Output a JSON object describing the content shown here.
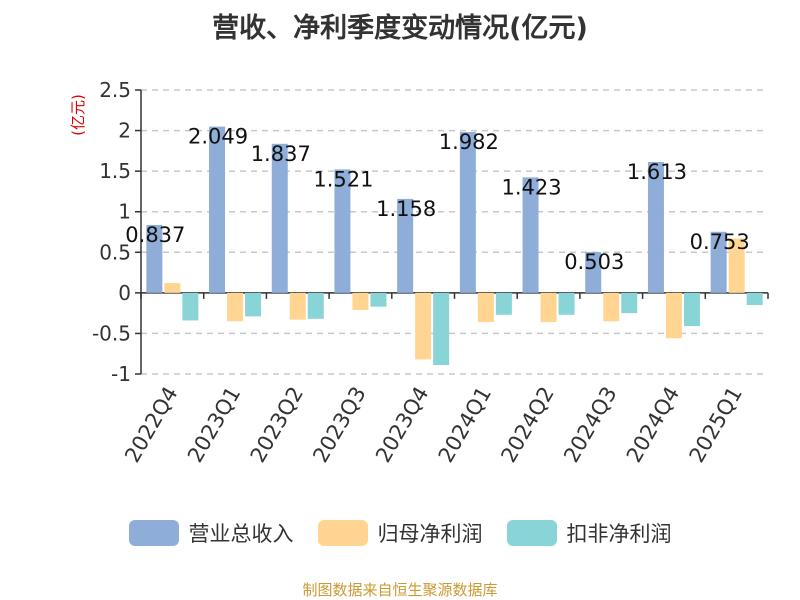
{
  "title": "营收、净利季度变动情况(亿元)",
  "source": "制图数据来自恒生聚源数据库",
  "chart_data": {
    "type": "bar",
    "title": "营收、净利季度变动情况(亿元)",
    "ylabel": "(亿元)",
    "xlabel": "",
    "ylim": [
      -1,
      2.5
    ],
    "yticks": [
      2.5,
      2,
      1.5,
      1,
      0.5,
      0,
      -0.5,
      -1
    ],
    "ytick_labels": [
      "2.5",
      "2",
      "1.5",
      "1",
      "0.5",
      "0",
      "-0.5",
      "-1"
    ],
    "grid": true,
    "legend_position": "bottom",
    "categories": [
      "2022Q4",
      "2023Q1",
      "2023Q2",
      "2023Q3",
      "2023Q4",
      "2024Q1",
      "2024Q2",
      "2024Q3",
      "2024Q4",
      "2025Q1"
    ],
    "series": [
      {
        "name": "营业总收入",
        "color": "#8eadd9",
        "values": [
          0.837,
          2.049,
          1.837,
          1.521,
          1.158,
          1.982,
          1.423,
          0.503,
          1.613,
          0.753
        ],
        "labels": [
          "0.837",
          "2.049",
          "1.837",
          "1.521",
          "1.158",
          "1.982",
          "1.423",
          "0.503",
          "1.613",
          "0.753"
        ]
      },
      {
        "name": "归母净利润",
        "color": "#ffd591",
        "values": [
          0.12,
          -0.35,
          -0.33,
          -0.21,
          -0.82,
          -0.36,
          -0.36,
          -0.35,
          -0.56,
          0.67
        ]
      },
      {
        "name": "扣非净利润",
        "color": "#88d4d6",
        "values": [
          -0.34,
          -0.29,
          -0.32,
          -0.17,
          -0.89,
          -0.27,
          -0.27,
          -0.25,
          -0.41,
          -0.15
        ]
      }
    ]
  }
}
